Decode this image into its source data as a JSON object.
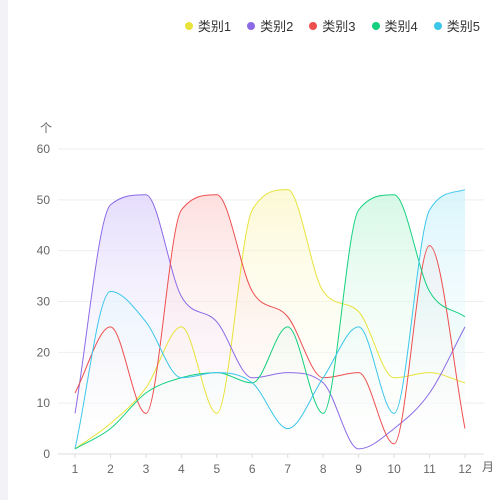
{
  "chart_data": {
    "type": "area",
    "categories": [
      "1",
      "2",
      "3",
      "4",
      "5",
      "6",
      "7",
      "8",
      "9",
      "10",
      "11",
      "12"
    ],
    "x_unit": "月",
    "y_unit": "个",
    "ylim": [
      0,
      60
    ],
    "yticks": [
      0,
      10,
      20,
      30,
      40,
      50,
      60
    ],
    "grid": true,
    "legend_position": "top-right",
    "series": [
      {
        "name": "类别1",
        "color": "#e8e33a",
        "fill": "#fbf7c8",
        "values": [
          1,
          6,
          13,
          25,
          8,
          48,
          52,
          32,
          28,
          15,
          16,
          14
        ]
      },
      {
        "name": "类别2",
        "color": "#8c6ae6",
        "fill": "#ddd2fb",
        "values": [
          8,
          49,
          51,
          31,
          26,
          15,
          16,
          14,
          1,
          5,
          12,
          25
        ]
      },
      {
        "name": "类别3",
        "color": "#ee4e4e",
        "fill": "#fdd5d5",
        "values": [
          12,
          25,
          8,
          48,
          51,
          32,
          27,
          15,
          16,
          2,
          41,
          5
        ]
      },
      {
        "name": "类别4",
        "color": "#14d07e",
        "fill": "#c9f6df",
        "values": [
          1,
          5,
          12,
          15,
          16,
          14,
          25,
          8,
          48,
          51,
          32,
          27
        ]
      },
      {
        "name": "类别5",
        "color": "#3cc6ea",
        "fill": "#cdf2fb",
        "values": [
          1,
          32,
          26,
          15,
          16,
          14,
          5,
          15,
          25,
          8,
          48,
          52
        ]
      }
    ]
  }
}
